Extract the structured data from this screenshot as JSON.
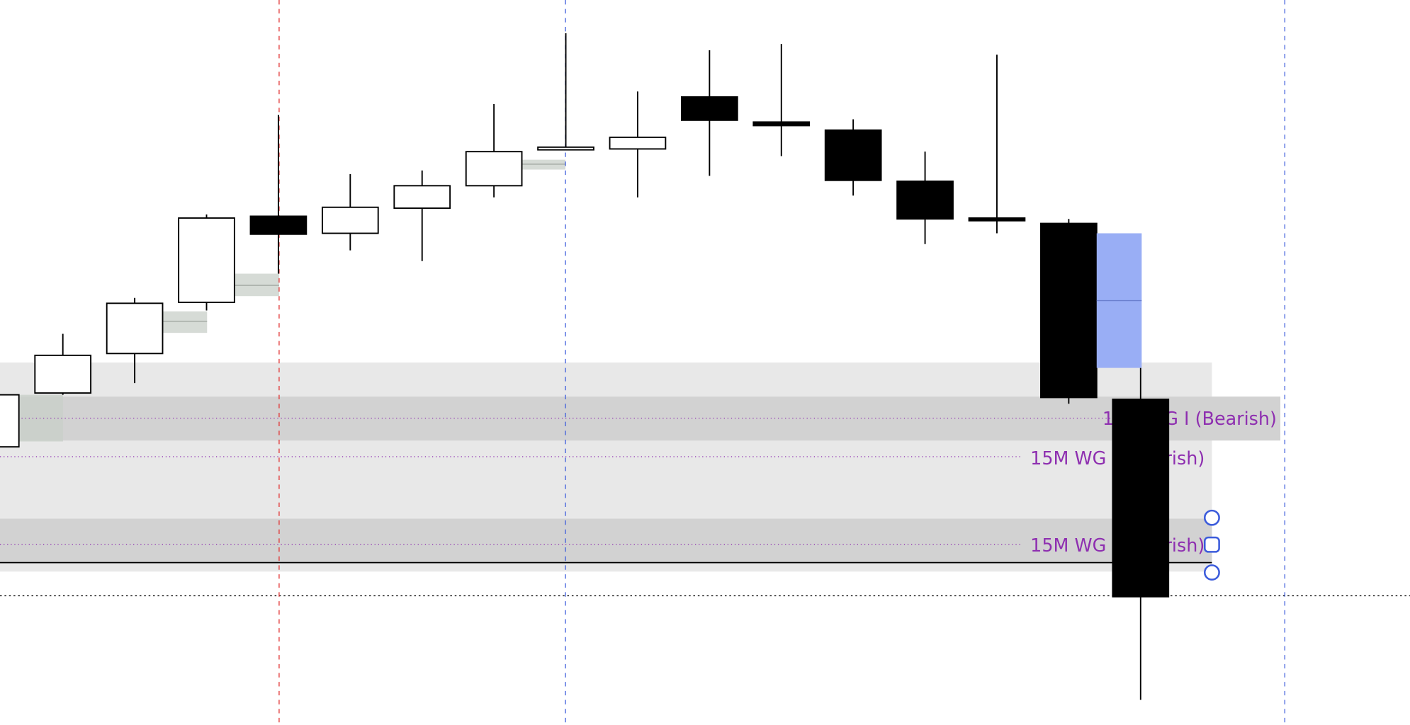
{
  "chart_data": {
    "type": "candlestick",
    "categories": [
      null,
      null,
      null,
      null,
      null,
      null,
      null,
      null,
      null,
      null,
      null,
      null,
      null,
      null,
      null,
      null,
      null
    ],
    "open": [
      310,
      370,
      414,
      471,
      567,
      548,
      576,
      601,
      641,
      642,
      700,
      672,
      663,
      606,
      565,
      559,
      363
    ],
    "close": [
      368,
      412,
      470,
      565,
      547,
      577,
      601,
      639,
      644,
      655,
      674,
      668,
      607,
      564,
      562,
      365,
      143
    ],
    "high": [
      368,
      436,
      476,
      569,
      680,
      614,
      618,
      692,
      771,
      706,
      752,
      759,
      675,
      639,
      747,
      564,
      398
    ],
    "low": [
      310,
      368,
      381,
      462,
      503,
      529,
      517,
      588,
      641,
      588,
      612,
      634,
      590,
      536,
      548,
      358,
      28
    ],
    "up_color": "#ffffff",
    "down_color": "#000000",
    "ylim": [
      0,
      808
    ],
    "annotations": [
      {
        "text": "15M WG I (Bearish)",
        "color": "#8e2fb0"
      },
      {
        "text": "15M WG I (Bearish)",
        "color": "#8e2fb0"
      },
      {
        "text": "15M WG I (Bearish)",
        "color": "#8e2fb0"
      }
    ]
  }
}
